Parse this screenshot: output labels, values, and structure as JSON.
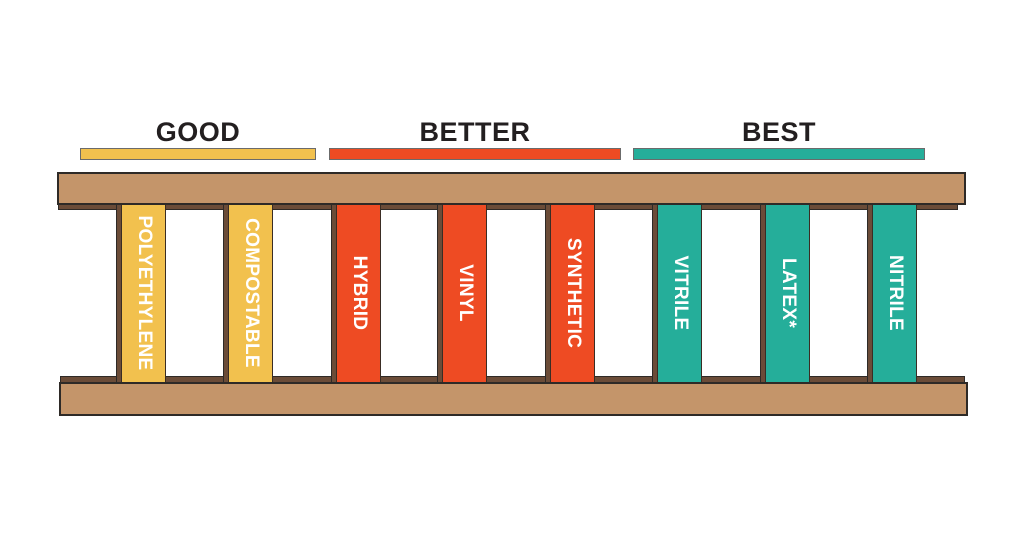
{
  "tiers": [
    {
      "label": "GOOD",
      "color": "#f2c14e"
    },
    {
      "label": "BETTER",
      "color": "#ee4b23"
    },
    {
      "label": "BEST",
      "color": "#25ae9a"
    }
  ],
  "rungs": [
    {
      "label": "POLYETHYLENE",
      "tier": 0
    },
    {
      "label": "COMPOSTABLE",
      "tier": 0
    },
    {
      "label": "HYBRID",
      "tier": 1
    },
    {
      "label": "VINYL",
      "tier": 1
    },
    {
      "label": "SYNTHETIC",
      "tier": 1
    },
    {
      "label": "VITRILE",
      "tier": 2
    },
    {
      "label": "LATEX*",
      "tier": 2
    },
    {
      "label": "NITRILE",
      "tier": 2
    }
  ],
  "colors": {
    "wood": "#c4956a",
    "wood_dark": "#6b4c38",
    "text": "#231f20"
  }
}
